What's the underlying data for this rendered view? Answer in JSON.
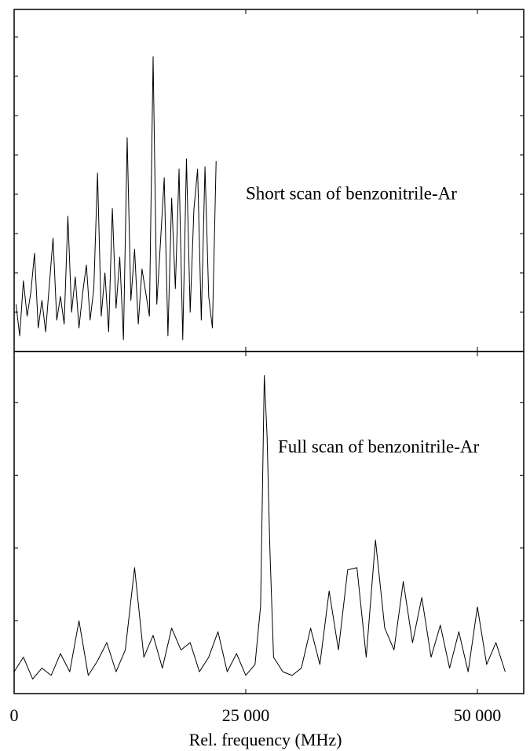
{
  "chart_data": [
    {
      "type": "line",
      "annotation": "Short scan of benzonitrile-Ar",
      "color": "#000000",
      "xlim": [
        0,
        55000
      ],
      "ylim": [
        0,
        8.7
      ],
      "xticks": [
        0,
        25000,
        50000
      ],
      "yticks": [
        1,
        2,
        3,
        4,
        5,
        6,
        7,
        8
      ],
      "x": [
        200,
        600,
        1000,
        1400,
        1800,
        2200,
        2600,
        3000,
        3400,
        3800,
        4200,
        4600,
        5000,
        5400,
        5800,
        6200,
        6600,
        7000,
        7400,
        7800,
        8200,
        8600,
        9000,
        9400,
        9800,
        10200,
        10600,
        11000,
        11400,
        11800,
        12200,
        12600,
        13000,
        13400,
        13800,
        14200,
        14600,
        15000,
        15400,
        15800,
        16200,
        16600,
        17000,
        17400,
        17800,
        18200,
        18600,
        19000,
        19400,
        19800,
        20200,
        20600,
        21000,
        21400,
        21800
      ],
      "values": [
        1.2,
        0.4,
        1.8,
        0.9,
        1.5,
        2.5,
        0.6,
        1.3,
        0.5,
        1.7,
        2.88,
        0.8,
        1.4,
        0.7,
        3.44,
        1.0,
        1.9,
        0.6,
        1.5,
        2.2,
        0.8,
        1.6,
        4.54,
        0.9,
        2.0,
        0.5,
        3.64,
        1.1,
        2.4,
        0.3,
        5.44,
        1.3,
        2.6,
        0.7,
        2.1,
        1.5,
        0.9,
        7.5,
        1.2,
        2.8,
        4.42,
        0.4,
        3.9,
        1.6,
        4.64,
        0.3,
        4.9,
        1.0,
        3.6,
        4.64,
        0.8,
        4.7,
        1.4,
        0.6,
        4.84
      ]
    },
    {
      "type": "line",
      "annotation": "Full scan of benzonitrile-Ar",
      "color": "#000000",
      "xlabel": "Rel. frequency (MHz)",
      "xlim": [
        0,
        55000
      ],
      "ylim": [
        0,
        4.7
      ],
      "xticks": [
        0,
        {
          "value": 25000,
          "label": "25 000"
        },
        {
          "value": 50000,
          "label": "50 000"
        }
      ],
      "yticks": [
        1,
        2,
        3,
        4
      ],
      "x": [
        0,
        1000,
        2000,
        3000,
        4000,
        5000,
        6000,
        7000,
        8000,
        9000,
        10000,
        11000,
        12000,
        13000,
        14000,
        15000,
        16000,
        17000,
        18000,
        19000,
        20000,
        21000,
        22000,
        23000,
        24000,
        25000,
        26000,
        26600,
        27000,
        27300,
        27600,
        28000,
        29000,
        30000,
        31000,
        32000,
        33000,
        34000,
        35000,
        36000,
        37000,
        38000,
        39000,
        40000,
        41000,
        42000,
        43000,
        44000,
        45000,
        46000,
        47000,
        48000,
        49000,
        50000,
        51000,
        52000,
        53000
      ],
      "values": [
        0.3,
        0.5,
        0.2,
        0.35,
        0.25,
        0.55,
        0.3,
        1.0,
        0.25,
        0.45,
        0.7,
        0.3,
        0.6,
        1.73,
        0.5,
        0.8,
        0.35,
        0.9,
        0.6,
        0.7,
        0.3,
        0.5,
        0.85,
        0.3,
        0.55,
        0.25,
        0.4,
        1.2,
        4.37,
        3.54,
        2.0,
        0.5,
        0.3,
        0.25,
        0.35,
        0.9,
        0.4,
        1.41,
        0.6,
        1.7,
        1.73,
        0.5,
        2.11,
        0.9,
        0.6,
        1.54,
        0.7,
        1.32,
        0.5,
        0.94,
        0.35,
        0.85,
        0.3,
        1.19,
        0.4,
        0.7,
        0.3
      ]
    }
  ]
}
